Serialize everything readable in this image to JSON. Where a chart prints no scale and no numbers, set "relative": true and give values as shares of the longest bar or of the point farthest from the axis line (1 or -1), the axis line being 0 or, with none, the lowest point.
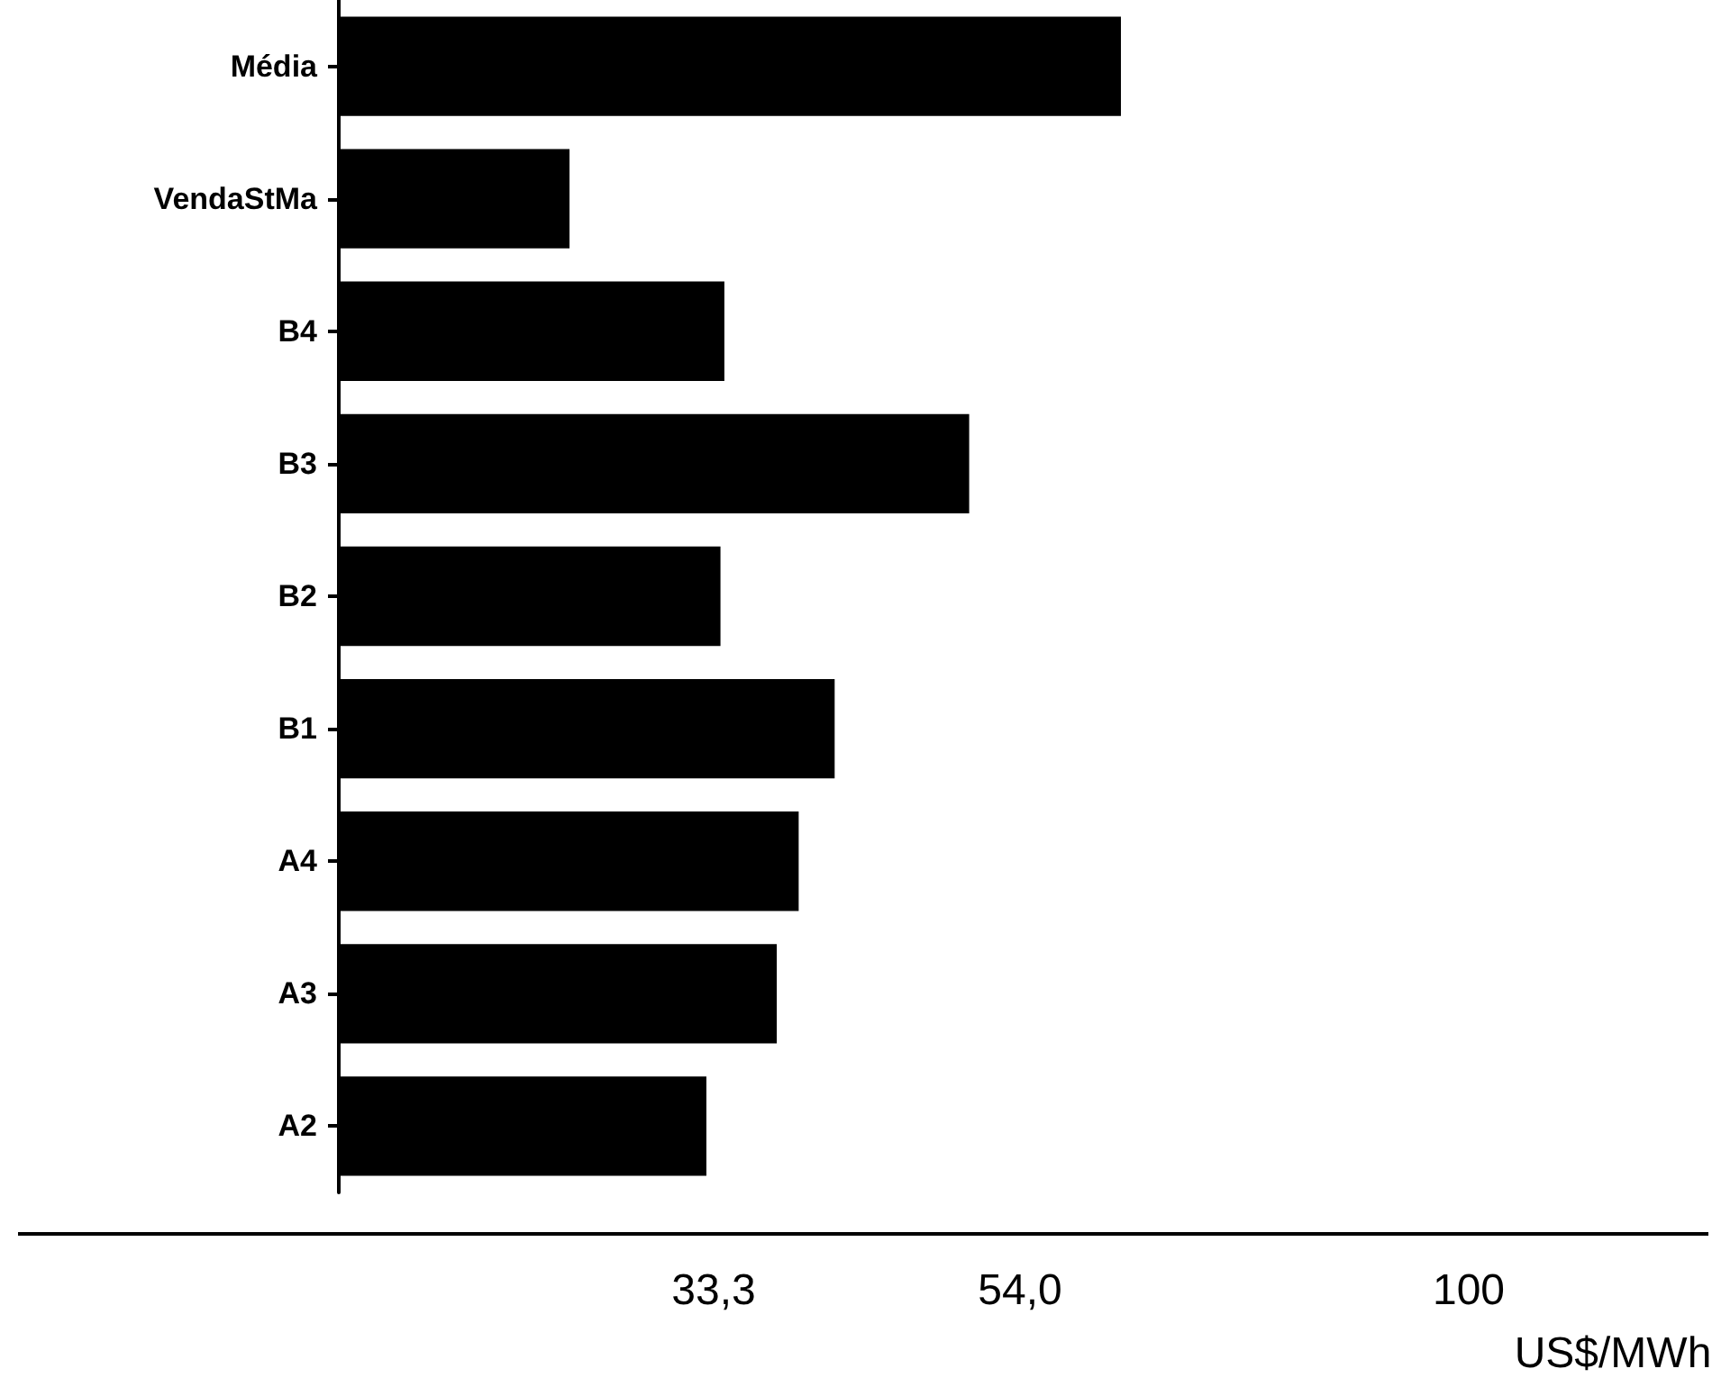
{
  "chart_data": {
    "type": "bar",
    "orientation": "horizontal",
    "relative": true,
    "categories": [
      "Média",
      "VendaStMa",
      "B4",
      "B3",
      "B2",
      "B1",
      "A4",
      "A3",
      "A2"
    ],
    "values": [
      1,
      0.295,
      0.493,
      0.806,
      0.488,
      0.634,
      0.588,
      0.56,
      0.47
    ],
    "color": "#000000",
    "annotations": [
      "33,3",
      "54,0",
      "100",
      "US$/MWh"
    ]
  }
}
